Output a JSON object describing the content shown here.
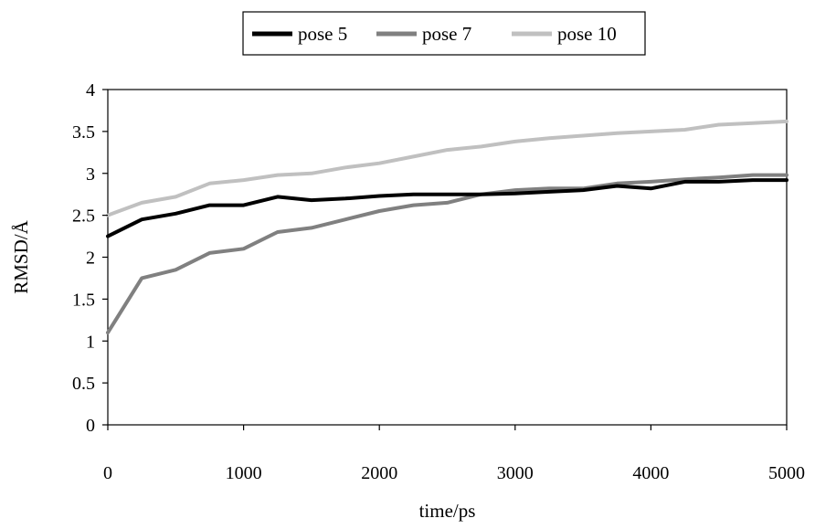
{
  "chart_data": {
    "type": "line",
    "title": "",
    "xlabel": "time/ps",
    "ylabel": "RMSD/Å",
    "xlim": [
      0,
      5000
    ],
    "ylim": [
      0,
      4
    ],
    "x_ticks": [
      0,
      1000,
      2000,
      3000,
      4000,
      5000
    ],
    "y_ticks": [
      0,
      0.5,
      1,
      1.5,
      2,
      2.5,
      3,
      3.5,
      4
    ],
    "x_tick_labels": [
      "0",
      "1000",
      "2000",
      "3000",
      "4000",
      "5000"
    ],
    "y_tick_labels": [
      "0",
      "0.5",
      "1",
      "1.5",
      "2",
      "2.5",
      "3",
      "3.5",
      "4"
    ],
    "grid": false,
    "legend_position": "top-center",
    "x": [
      0,
      250,
      500,
      750,
      1000,
      1250,
      1500,
      1750,
      2000,
      2250,
      2500,
      2750,
      3000,
      3250,
      3500,
      3750,
      4000,
      4250,
      4500,
      4750,
      5000
    ],
    "series": [
      {
        "name": "pose 5",
        "color": "#000000",
        "values": [
          2.25,
          2.45,
          2.52,
          2.62,
          2.62,
          2.72,
          2.68,
          2.7,
          2.73,
          2.75,
          2.75,
          2.75,
          2.76,
          2.78,
          2.8,
          2.85,
          2.82,
          2.9,
          2.9,
          2.92,
          2.92
        ]
      },
      {
        "name": "pose 7",
        "color": "#808080",
        "values": [
          1.1,
          1.75,
          1.85,
          2.05,
          2.1,
          2.3,
          2.35,
          2.45,
          2.55,
          2.62,
          2.65,
          2.75,
          2.8,
          2.82,
          2.82,
          2.88,
          2.9,
          2.93,
          2.95,
          2.98,
          2.98
        ]
      },
      {
        "name": "pose 10",
        "color": "#c0c0c0",
        "values": [
          2.5,
          2.65,
          2.72,
          2.88,
          2.92,
          2.98,
          3.0,
          3.07,
          3.12,
          3.2,
          3.28,
          3.32,
          3.38,
          3.42,
          3.45,
          3.48,
          3.5,
          3.52,
          3.58,
          3.6,
          3.62
        ]
      }
    ]
  }
}
